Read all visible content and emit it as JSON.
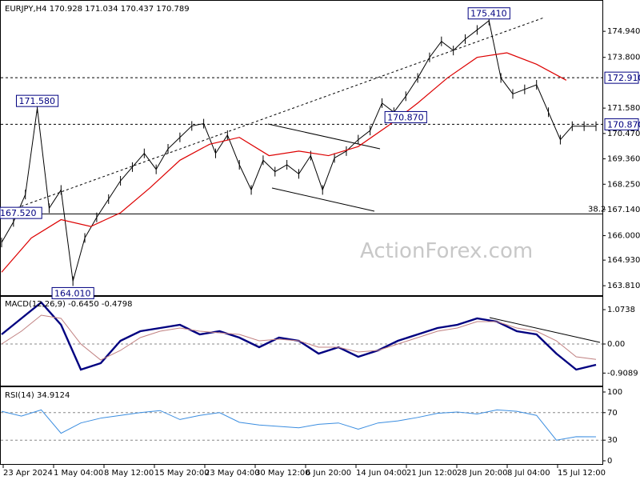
{
  "header": {
    "symbol_line": "EURJPY,H4  170.928 171.034 170.437 170.789"
  },
  "watermark": "ActionForex.com",
  "colors": {
    "price": "#000000",
    "ema": "#dd0000",
    "macd": "#000080",
    "signal": "#c08080",
    "rsi": "#3a8de0",
    "label_border": "#000080",
    "grid": "#000000"
  },
  "chart_data": [
    {
      "type": "line",
      "panel": "price",
      "title": "EURJPY,H4",
      "ylim": [
        163.5,
        176.1
      ],
      "y_ticks": [
        "174.940",
        "173.800",
        "171.580",
        "170.470",
        "169.360",
        "168.250",
        "167.140",
        "166.000",
        "164.930",
        "163.810"
      ],
      "x_ticks": [
        "23 Apr 2024",
        "1 May 04:00",
        "8 May 12:00",
        "15 May 20:00",
        "23 May 04:00",
        "30 May 12:00",
        "6 Jun 20:00",
        "14 Jun 04:00",
        "21 Jun 12:00",
        "28 Jun 20:00",
        "8 Jul 04:00",
        "15 Jul 12:00"
      ],
      "series": [
        {
          "role": "price",
          "x": [
            0,
            2,
            4,
            6,
            8,
            10,
            12,
            14,
            16,
            18,
            20,
            22,
            24,
            26,
            28,
            30,
            32,
            34,
            36,
            38,
            40,
            42,
            44,
            46,
            48,
            50,
            52,
            54,
            56,
            58,
            60,
            62,
            64,
            66,
            68,
            70,
            72,
            74,
            76,
            78,
            80,
            82,
            84,
            86,
            88,
            90,
            92,
            94,
            96,
            98,
            100
          ],
          "values": [
            165.7,
            166.6,
            167.8,
            171.58,
            167.2,
            168.0,
            164.01,
            165.9,
            166.8,
            167.6,
            168.4,
            169.0,
            169.6,
            168.9,
            169.8,
            170.3,
            170.8,
            170.9,
            169.6,
            170.4,
            169.1,
            168.0,
            169.3,
            168.8,
            169.1,
            168.7,
            169.5,
            168.0,
            169.4,
            169.7,
            170.2,
            170.6,
            171.8,
            171.4,
            172.1,
            172.9,
            173.8,
            174.5,
            174.1,
            174.6,
            175.0,
            175.41,
            172.9,
            172.2,
            172.4,
            172.6,
            171.4,
            170.2,
            170.79,
            170.79,
            170.79
          ]
        },
        {
          "role": "ema",
          "x": [
            0,
            5,
            10,
            15,
            20,
            25,
            30,
            35,
            40,
            45,
            50,
            55,
            60,
            65,
            70,
            75,
            80,
            85,
            90,
            95
          ],
          "values": [
            164.4,
            165.9,
            166.7,
            166.4,
            167.0,
            168.1,
            169.3,
            170.0,
            170.3,
            169.5,
            169.7,
            169.5,
            169.9,
            170.8,
            171.8,
            172.9,
            173.8,
            174.0,
            173.5,
            172.8
          ]
        }
      ],
      "levels": [
        {
          "value": 172.91,
          "label": "172.910",
          "style": "dashed"
        },
        {
          "value": 170.87,
          "label": "170.870",
          "style": "dashed"
        },
        {
          "value": 166.95,
          "label": "38.2",
          "style": "solid"
        }
      ],
      "annotations": [
        "175.410",
        "171.580",
        "170.870",
        "167.520",
        "164.010"
      ]
    },
    {
      "type": "line",
      "panel": "macd",
      "title": "MACD(12,26,9) -0.6450 -0.4798",
      "y_ticks": [
        "1.0738",
        "0.00",
        "-0.9089"
      ],
      "ylim": [
        -1.2,
        1.3
      ],
      "series": [
        {
          "role": "macd",
          "values": [
            0.3,
            0.8,
            1.3,
            0.6,
            -0.8,
            -0.6,
            0.1,
            0.4,
            0.5,
            0.6,
            0.3,
            0.4,
            0.2,
            -0.1,
            0.2,
            0.1,
            -0.3,
            -0.1,
            -0.4,
            -0.2,
            0.1,
            0.3,
            0.5,
            0.6,
            0.8,
            0.7,
            0.4,
            0.3,
            -0.3,
            -0.8,
            -0.65
          ]
        },
        {
          "role": "signal",
          "values": [
            0.0,
            0.4,
            0.9,
            0.8,
            0.0,
            -0.5,
            -0.2,
            0.2,
            0.4,
            0.5,
            0.4,
            0.35,
            0.3,
            0.1,
            0.15,
            0.1,
            -0.1,
            -0.1,
            -0.25,
            -0.2,
            0.0,
            0.2,
            0.4,
            0.5,
            0.7,
            0.7,
            0.5,
            0.4,
            0.1,
            -0.4,
            -0.48
          ]
        }
      ]
    },
    {
      "type": "line",
      "panel": "rsi",
      "title": "RSI(14) 34.9124",
      "y_ticks": [
        "100",
        "70",
        "30",
        "0"
      ],
      "ylim": [
        0,
        100
      ],
      "levels": [
        70,
        30
      ],
      "series": [
        {
          "role": "rsi",
          "values": [
            72,
            65,
            74,
            40,
            55,
            62,
            66,
            70,
            73,
            60,
            66,
            70,
            56,
            52,
            50,
            48,
            53,
            55,
            46,
            55,
            58,
            63,
            69,
            71,
            68,
            74,
            72,
            66,
            30,
            35,
            34.9
          ]
        }
      ]
    }
  ]
}
